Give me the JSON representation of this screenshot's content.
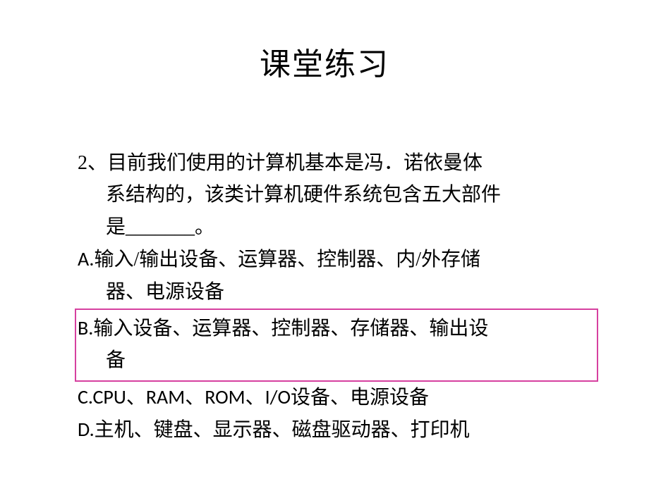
{
  "slide": {
    "title": "课堂练习",
    "question_line1": "2、目前我们使用的计算机基本是冯．诺依曼体",
    "question_line2": "系结构的，该类计算机硬件系统包含五大部件",
    "question_line3": "是_______。",
    "options": {
      "a_line1_prefix": "A.",
      "a_line1_text": "输入/输出设备、运算器、控制器、内/外存储",
      "a_line2": "器、电源设备",
      "b_line1_prefix": "B.",
      "b_line1_text": "输入设备、运算器、控制器、存储器、输出设",
      "b_line2": "备",
      "c_prefix": "C.",
      "c_latin": "CPU、RAM、ROM、I/O",
      "c_rest": "设备、电源设备",
      "d_prefix": "D.",
      "d_text": "主机、键盘、显示器、磁盘驱动器、打印机"
    }
  },
  "styling": {
    "background_color": "#ffffff",
    "text_color": "#000000",
    "highlight_border_color": "#d6409f",
    "title_fontsize": 44,
    "body_fontsize": 28,
    "slide_width": 920,
    "slide_height": 690,
    "highlighted_option": "B"
  }
}
